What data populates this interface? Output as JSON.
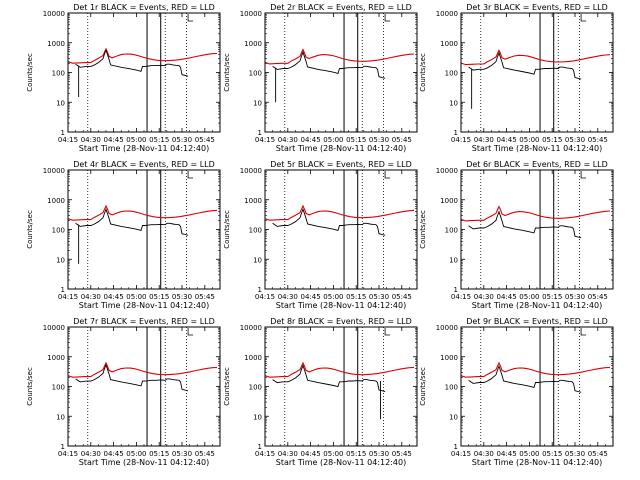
{
  "chart_data": {
    "type": "line",
    "time_labels": [
      "04:15",
      "04:30",
      "04:45",
      "05:00",
      "05:15",
      "05:30",
      "05:45"
    ],
    "x_start_min": 255,
    "x_end_min": 355,
    "xlabel": "Start Time (28-Nov-11 04:12:40)",
    "ylabel": "Counts/sec",
    "ylog": true,
    "ylim": [
      1,
      10000
    ],
    "y_tick_labels": [
      "1",
      "10",
      "100",
      "1000",
      "10000"
    ],
    "dotted_lines_min": [
      268,
      319,
      333
    ],
    "solid_lines_min": [
      307,
      316
    ],
    "colors": {
      "events": "#000000",
      "lld": "#e00000"
    },
    "legend_text": "BLACK = Events, RED = LLD",
    "red_lld": [
      [
        255,
        230
      ],
      [
        258,
        205
      ],
      [
        262,
        210
      ],
      [
        266,
        215
      ],
      [
        270,
        215
      ],
      [
        272,
        250
      ],
      [
        275,
        300
      ],
      [
        278,
        370
      ],
      [
        279,
        480
      ],
      [
        280,
        620
      ],
      [
        281,
        480
      ],
      [
        282,
        350
      ],
      [
        284,
        310
      ],
      [
        287,
        355
      ],
      [
        290,
        400
      ],
      [
        293,
        420
      ],
      [
        296,
        415
      ],
      [
        299,
        395
      ],
      [
        302,
        360
      ],
      [
        305,
        320
      ],
      [
        308,
        290
      ],
      [
        311,
        270
      ],
      [
        314,
        258
      ],
      [
        317,
        252
      ],
      [
        320,
        250
      ],
      [
        323,
        255
      ],
      [
        326,
        262
      ],
      [
        329,
        272
      ],
      [
        332,
        290
      ],
      [
        335,
        310
      ],
      [
        338,
        335
      ],
      [
        341,
        360
      ],
      [
        344,
        385
      ],
      [
        347,
        410
      ],
      [
        350,
        430
      ],
      [
        353,
        440
      ]
    ],
    "black_events": [
      [
        260,
        190
      ],
      [
        263,
        150
      ],
      [
        267,
        160
      ],
      [
        270,
        160
      ],
      [
        272,
        175
      ],
      [
        275,
        215
      ],
      [
        278,
        290
      ],
      [
        279,
        420
      ],
      [
        280,
        560
      ],
      [
        281,
        400
      ],
      [
        282,
        280
      ],
      [
        283,
        180
      ],
      [
        290,
        150
      ],
      [
        295,
        135
      ],
      [
        300,
        120
      ],
      [
        303,
        110
      ],
      [
        304,
        160
      ],
      [
        306,
        160
      ],
      [
        308,
        165
      ],
      [
        310,
        170
      ],
      [
        313,
        170
      ],
      [
        316,
        175
      ],
      [
        319,
        170
      ],
      [
        320,
        190
      ],
      [
        322,
        190
      ],
      [
        324,
        180
      ],
      [
        326,
        175
      ],
      [
        328,
        170
      ],
      [
        329,
        150
      ],
      [
        330,
        85
      ],
      [
        332,
        80
      ],
      [
        334,
        75
      ]
    ],
    "panels": [
      {
        "title": "Det 1r BLACK = Events, RED = LLD",
        "black_scale": 1.0,
        "spike_min": 262,
        "spike_val": 15,
        "red_scale": 1.0
      },
      {
        "title": "Det 2r BLACK = Events, RED = LLD",
        "black_scale": 0.85,
        "spike_min": 262,
        "spike_val": 10,
        "red_scale": 0.95
      },
      {
        "title": "Det 3r BLACK = Events, RED = LLD",
        "black_scale": 0.8,
        "spike_min": 262,
        "spike_val": 6,
        "red_scale": 0.9
      },
      {
        "title": "Det 4r BLACK = Events, RED = LLD",
        "black_scale": 0.85,
        "spike_min": 262,
        "spike_val": 7,
        "red_scale": 1.0
      },
      {
        "title": "Det 5r BLACK = Events, RED = LLD",
        "black_scale": 0.85,
        "spike_min": null,
        "spike_val": null,
        "red_scale": 1.0
      },
      {
        "title": "Det 6r BLACK = Events, RED = LLD",
        "black_scale": 0.7,
        "spike_min": null,
        "spike_val": null,
        "red_scale": 0.95
      },
      {
        "title": "Det 7r BLACK = Events, RED = LLD",
        "black_scale": 0.95,
        "spike_min": null,
        "spike_val": null,
        "red_scale": 1.0
      },
      {
        "title": "Det 8r BLACK = Events, RED = LLD",
        "black_scale": 0.9,
        "spike_min": 331,
        "spike_val": 8,
        "red_scale": 1.0
      },
      {
        "title": "Det 9r BLACK = Events, RED = LLD",
        "black_scale": 0.85,
        "spike_min": null,
        "spike_val": null,
        "red_scale": 1.0
      }
    ]
  }
}
